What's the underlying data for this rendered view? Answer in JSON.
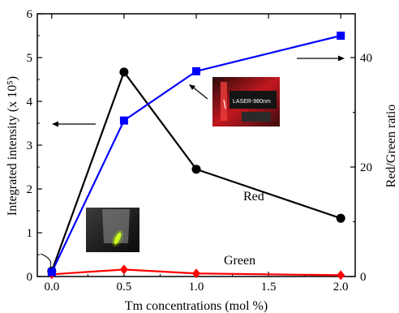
{
  "chart_data": {
    "type": "line",
    "x": [
      0.0,
      0.5,
      1.0,
      2.0
    ],
    "xlabel": "Tm concentrations (mol %)",
    "xlim": [
      -0.1,
      2.1
    ],
    "xticks": [
      "0.0",
      "0.5",
      "1.0",
      "1.5",
      "2.0"
    ],
    "xtick_values": [
      0.0,
      0.5,
      1.0,
      1.5,
      2.0
    ],
    "ylabel_left": "Integrated intensity (x 10⁵)",
    "ylim_left": [
      0,
      6
    ],
    "yticks_left": [
      "0",
      "1",
      "2",
      "3",
      "4",
      "5",
      "6"
    ],
    "ylabel_right": "Red/Green ratio",
    "ylim_right": [
      0,
      48
    ],
    "yticks_right": [
      "0",
      "20",
      "40"
    ],
    "ytick_values_right": [
      0,
      20,
      40
    ],
    "series": [
      {
        "name": "Red",
        "axis": "left",
        "color": "#000000",
        "marker": "circle",
        "values": [
          0.12,
          4.67,
          2.45,
          1.33
        ]
      },
      {
        "name": "Green",
        "axis": "left",
        "color": "#ff0000",
        "marker": "diamond",
        "values": [
          0.05,
          0.16,
          0.07,
          0.03
        ]
      },
      {
        "axis": "right",
        "color": "#0000ff",
        "marker": "square",
        "values": [
          0.8,
          28.5,
          37.5,
          44.0
        ]
      }
    ],
    "insets": [
      {
        "name": "red-emission-photo",
        "label": "LASER-980nm"
      },
      {
        "name": "green-emission-photo"
      }
    ],
    "grid": false
  }
}
